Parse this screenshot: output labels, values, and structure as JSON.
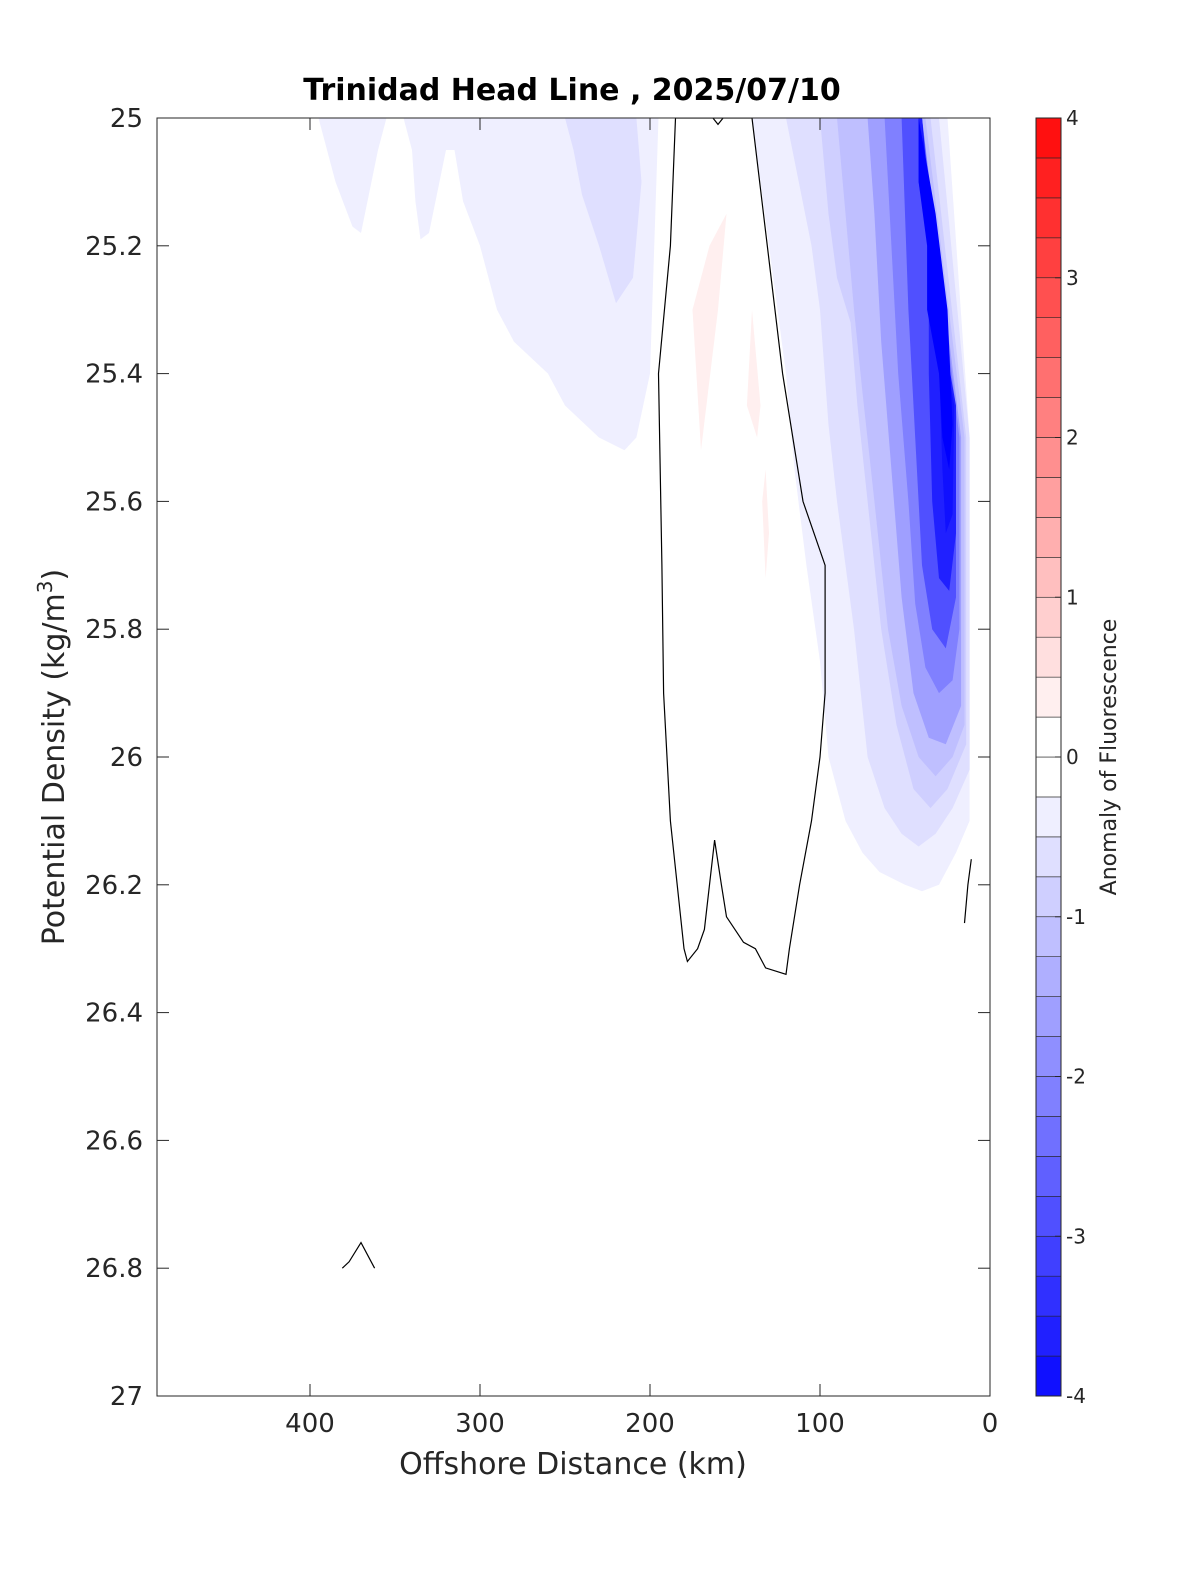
{
  "chart_data": {
    "type": "contour",
    "title": "Trinidad Head Line , 2025/07/10",
    "xlabel": "Offshore Distance (km)",
    "ylabel_main": "Potential Density (kg/m",
    "ylabel_sup": "3",
    "ylabel_close": ")",
    "colorbar_label": "Anomaly of Fluorescence",
    "x_reversed": true,
    "y_reversed": true,
    "xlim": [
      0,
      490
    ],
    "ylim": [
      25,
      27
    ],
    "x_ticks": [
      400,
      300,
      200,
      100,
      0
    ],
    "x_tick_labels": [
      "400",
      "300",
      "200",
      "100",
      "0"
    ],
    "y_ticks": [
      25,
      25.2,
      25.4,
      25.6,
      25.8,
      26,
      26.2,
      26.4,
      26.6,
      26.8,
      27
    ],
    "y_tick_labels": [
      "25",
      "25.2",
      "25.4",
      "25.6",
      "25.8",
      "26",
      "26.2",
      "26.4",
      "26.6",
      "26.8",
      "27"
    ],
    "colorbar": {
      "clim": [
        -4,
        4
      ],
      "step": 0.25,
      "ticks": [
        4,
        3,
        2,
        1,
        0,
        -1,
        -2,
        -3,
        -4
      ],
      "tick_labels": [
        "4",
        "3",
        "2",
        "1",
        "0",
        "-1",
        "-2",
        "-3",
        "-4"
      ],
      "neg_color": "#0000ff",
      "pos_color": "#ff0000",
      "mid_color": "#ffffff"
    },
    "filled_regions": [
      {
        "level": -0.25,
        "points": [
          [
            395,
            25
          ],
          [
            385,
            25.1
          ],
          [
            375,
            25.17
          ],
          [
            370,
            25.18
          ],
          [
            360,
            25.05
          ],
          [
            355,
            25
          ],
          [
            345,
            25
          ],
          [
            340,
            25.05
          ],
          [
            338,
            25.13
          ],
          [
            335,
            25.19
          ],
          [
            330,
            25.18
          ],
          [
            320,
            25.05
          ],
          [
            315,
            25.05
          ],
          [
            310,
            25.13
          ],
          [
            300,
            25.2
          ],
          [
            290,
            25.3
          ],
          [
            280,
            25.35
          ],
          [
            260,
            25.4
          ],
          [
            250,
            25.45
          ],
          [
            230,
            25.5
          ],
          [
            215,
            25.52
          ],
          [
            208,
            25.5
          ],
          [
            200,
            25.4
          ],
          [
            195,
            25
          ],
          [
            312,
            25
          ],
          [
            320,
            25
          ],
          [
            395,
            25
          ]
        ]
      },
      {
        "level": -0.5,
        "points": [
          [
            250,
            25
          ],
          [
            245,
            25.05
          ],
          [
            240,
            25.12
          ],
          [
            230,
            25.2
          ],
          [
            220,
            25.29
          ],
          [
            210,
            25.25
          ],
          [
            205,
            25.1
          ],
          [
            208,
            25
          ],
          [
            250,
            25
          ]
        ]
      },
      {
        "level": -0.25,
        "points": [
          [
            140,
            25
          ],
          [
            130,
            25.2
          ],
          [
            120,
            25.4
          ],
          [
            115,
            25.55
          ],
          [
            108,
            25.7
          ],
          [
            100,
            25.85
          ],
          [
            95,
            26
          ],
          [
            85,
            26.1
          ],
          [
            75,
            26.15
          ],
          [
            65,
            26.18
          ],
          [
            50,
            26.2
          ],
          [
            40,
            26.21
          ],
          [
            30,
            26.2
          ],
          [
            20,
            26.15
          ],
          [
            12,
            26.1
          ],
          [
            12,
            25.5
          ],
          [
            25,
            25
          ],
          [
            140,
            25
          ]
        ]
      },
      {
        "level": -0.5,
        "points": [
          [
            120,
            25
          ],
          [
            105,
            25.2
          ],
          [
            100,
            25.3
          ],
          [
            95,
            25.48
          ],
          [
            90,
            25.6
          ],
          [
            80,
            25.8
          ],
          [
            72,
            26
          ],
          [
            62,
            26.08
          ],
          [
            52,
            26.12
          ],
          [
            42,
            26.14
          ],
          [
            32,
            26.12
          ],
          [
            22,
            26.08
          ],
          [
            12,
            26.02
          ],
          [
            12,
            25.5
          ],
          [
            30,
            25
          ],
          [
            120,
            25
          ]
        ]
      },
      {
        "level": -0.75,
        "points": [
          [
            100,
            25
          ],
          [
            95,
            25.15
          ],
          [
            90,
            25.25
          ],
          [
            82,
            25.32
          ],
          [
            78,
            25.45
          ],
          [
            72,
            25.6
          ],
          [
            64,
            25.8
          ],
          [
            55,
            25.95
          ],
          [
            45,
            26.05
          ],
          [
            35,
            26.08
          ],
          [
            25,
            26.05
          ],
          [
            14,
            25.98
          ],
          [
            14,
            25.5
          ],
          [
            35,
            25
          ],
          [
            100,
            25
          ]
        ]
      },
      {
        "level": -1,
        "points": [
          [
            90,
            25
          ],
          [
            85,
            25.15
          ],
          [
            80,
            25.3
          ],
          [
            75,
            25.43
          ],
          [
            68,
            25.6
          ],
          [
            60,
            25.8
          ],
          [
            52,
            25.92
          ],
          [
            42,
            26.0
          ],
          [
            32,
            26.03
          ],
          [
            22,
            26.0
          ],
          [
            15,
            25.95
          ],
          [
            15,
            25.5
          ],
          [
            38,
            25
          ],
          [
            90,
            25
          ]
        ]
      },
      {
        "level": -1.5,
        "points": [
          [
            72,
            25
          ],
          [
            68,
            25.15
          ],
          [
            64,
            25.35
          ],
          [
            58,
            25.55
          ],
          [
            52,
            25.75
          ],
          [
            45,
            25.9
          ],
          [
            36,
            25.97
          ],
          [
            26,
            25.98
          ],
          [
            17,
            25.92
          ],
          [
            17,
            25.5
          ],
          [
            40,
            25
          ],
          [
            72,
            25
          ]
        ]
      },
      {
        "level": -2,
        "points": [
          [
            62,
            25
          ],
          [
            58,
            25.2
          ],
          [
            54,
            25.4
          ],
          [
            48,
            25.6
          ],
          [
            44,
            25.76
          ],
          [
            38,
            25.86
          ],
          [
            30,
            25.9
          ],
          [
            22,
            25.88
          ],
          [
            18,
            25.8
          ],
          [
            18,
            25.5
          ],
          [
            40,
            25
          ],
          [
            62,
            25
          ]
        ]
      },
      {
        "level": -2.75,
        "points": [
          [
            52,
            25
          ],
          [
            50,
            25.15
          ],
          [
            48,
            25.3
          ],
          [
            44,
            25.5
          ],
          [
            40,
            25.7
          ],
          [
            34,
            25.8
          ],
          [
            26,
            25.83
          ],
          [
            20,
            25.75
          ],
          [
            20,
            25.5
          ],
          [
            40,
            25
          ],
          [
            52,
            25
          ]
        ]
      },
      {
        "level": -3.5,
        "points": [
          [
            42,
            25
          ],
          [
            42,
            25.1
          ],
          [
            36,
            25.2
          ],
          [
            36,
            25.4
          ],
          [
            34,
            25.6
          ],
          [
            30,
            25.72
          ],
          [
            24,
            25.74
          ],
          [
            20,
            25.65
          ],
          [
            20,
            25.45
          ],
          [
            30,
            25.3
          ],
          [
            40,
            25
          ],
          [
            42,
            25
          ]
        ]
      },
      {
        "level": -3.75,
        "points": [
          [
            40,
            25
          ],
          [
            38,
            25.12
          ],
          [
            33,
            25.28
          ],
          [
            30,
            25.38
          ],
          [
            28,
            25.55
          ],
          [
            26,
            25.65
          ],
          [
            22,
            25.62
          ],
          [
            21,
            25.45
          ],
          [
            30,
            25.32
          ],
          [
            40,
            25
          ],
          [
            40,
            25
          ]
        ]
      },
      {
        "level": -4,
        "points": [
          [
            42,
            25
          ],
          [
            42,
            25.1
          ],
          [
            37,
            25.2
          ],
          [
            37,
            25.3
          ],
          [
            30,
            25.4
          ],
          [
            28,
            25.5
          ],
          [
            24,
            25.55
          ],
          [
            22,
            25.48
          ],
          [
            25,
            25.3
          ],
          [
            32,
            25.15
          ],
          [
            42,
            25
          ]
        ]
      },
      {
        "level": 0.25,
        "points": [
          [
            175,
            25.3
          ],
          [
            165,
            25.2
          ],
          [
            155,
            25.15
          ],
          [
            160,
            25.3
          ],
          [
            170,
            25.52
          ],
          [
            175,
            25.3
          ]
        ]
      },
      {
        "level": 0.25,
        "points": [
          [
            140,
            25.3
          ],
          [
            135,
            25.45
          ],
          [
            137,
            25.5
          ],
          [
            143,
            25.45
          ],
          [
            140,
            25.3
          ]
        ]
      },
      {
        "level": 0.25,
        "points": [
          [
            132,
            25.55
          ],
          [
            130,
            25.65
          ],
          [
            132,
            25.72
          ],
          [
            134,
            25.6
          ],
          [
            132,
            25.55
          ]
        ]
      }
    ],
    "zero_contours": [
      [
        [
          185,
          25
        ],
        [
          188,
          25.2
        ],
        [
          195,
          25.4
        ],
        [
          193,
          25.7
        ],
        [
          192,
          25.9
        ],
        [
          188,
          26.1
        ],
        [
          182,
          26.25
        ],
        [
          180,
          26.3
        ],
        [
          178,
          26.32
        ],
        [
          172,
          26.3
        ],
        [
          168,
          26.27
        ],
        [
          165,
          26.2
        ],
        [
          162,
          26.13
        ],
        [
          158,
          26.2
        ],
        [
          155,
          26.25
        ],
        [
          145,
          26.29
        ],
        [
          138,
          26.3
        ],
        [
          132,
          26.33
        ],
        [
          120,
          26.34
        ],
        [
          118,
          26.3
        ],
        [
          112,
          26.2
        ],
        [
          105,
          26.1
        ],
        [
          100,
          26.0
        ],
        [
          97,
          25.9
        ],
        [
          97,
          25.7
        ],
        [
          110,
          25.6
        ],
        [
          122,
          25.4
        ],
        [
          140,
          25
        ],
        [
          163,
          25
        ],
        [
          160,
          25.01
        ],
        [
          157,
          25
        ],
        [
          185,
          25
        ]
      ],
      [
        [
          381,
          26.8
        ],
        [
          377,
          26.79
        ],
        [
          370,
          26.76
        ],
        [
          362,
          26.8
        ]
      ],
      [
        [
          15,
          26.26
        ],
        [
          13,
          26.2
        ],
        [
          11,
          26.16
        ]
      ]
    ]
  }
}
